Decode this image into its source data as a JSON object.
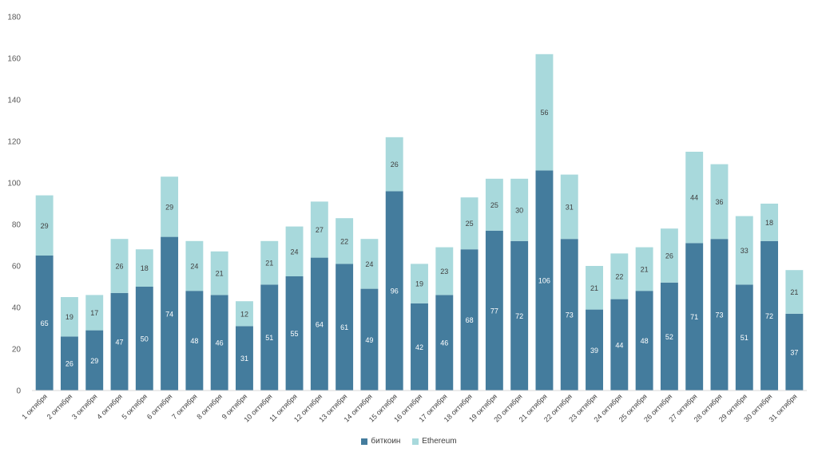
{
  "chart_data": {
    "type": "bar",
    "stacked": true,
    "title": "",
    "xlabel": "",
    "ylabel": "",
    "ylim": [
      0,
      180
    ],
    "yticks": [
      0,
      20,
      40,
      60,
      80,
      100,
      120,
      140,
      160,
      180
    ],
    "grid": false,
    "legend_position": "bottom",
    "categories": [
      "1 октября",
      "2 октября",
      "3 октября",
      "4 октября",
      "5 октября",
      "6 октября",
      "7 октября",
      "8 октября",
      "9 октября",
      "10 октября",
      "11 октября",
      "12 октября",
      "13 октября",
      "14 октября",
      "15 октября",
      "16 октября",
      "17 октября",
      "18 октября",
      "19 октября",
      "20 октября",
      "21 октября",
      "22 октября",
      "23 октября",
      "24 октября",
      "25 октября",
      "26 октября",
      "27 октября",
      "28 октября",
      "29 октября",
      "30 октября",
      "31 октября"
    ],
    "series": [
      {
        "name": "биткоин",
        "color": "#447c9d",
        "label_color": "#ffffff",
        "values": [
          65,
          26,
          29,
          47,
          50,
          74,
          48,
          46,
          31,
          51,
          55,
          64,
          61,
          49,
          96,
          42,
          46,
          68,
          77,
          72,
          106,
          73,
          39,
          44,
          48,
          52,
          71,
          73,
          51,
          72,
          37
        ]
      },
      {
        "name": "Ethereum",
        "color": "#a8d9dc",
        "label_color": "#404040",
        "values": [
          29,
          19,
          17,
          26,
          18,
          29,
          24,
          21,
          12,
          21,
          24,
          27,
          22,
          24,
          26,
          19,
          23,
          25,
          25,
          30,
          56,
          31,
          21,
          22,
          21,
          26,
          44,
          36,
          33,
          18,
          21
        ]
      }
    ]
  }
}
